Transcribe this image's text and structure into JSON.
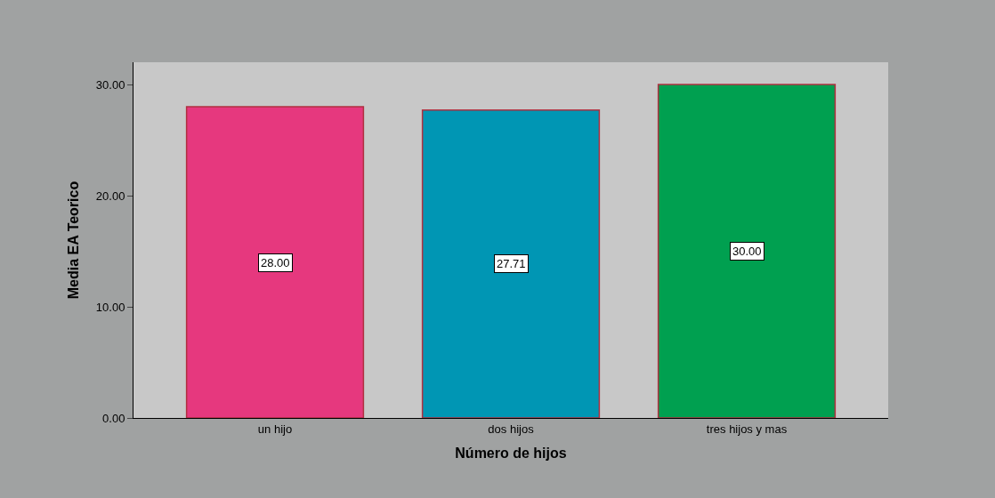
{
  "chart_data": {
    "type": "bar",
    "xlabel": "Número de hijos",
    "ylabel": "Media EA Teorico",
    "categories": [
      "un hijo",
      "dos hijos",
      "tres hijos y mas"
    ],
    "values": [
      28.0,
      27.71,
      30.0
    ],
    "colors": [
      "#e6387e",
      "#0096b4",
      "#00a050"
    ],
    "value_labels": [
      "28.00",
      "27.71",
      "30.00"
    ],
    "ylim": [
      0,
      32
    ],
    "yticks": [
      {
        "value": 0,
        "label": "0.00"
      },
      {
        "value": 10,
        "label": "10.00"
      },
      {
        "value": 20,
        "label": "20.00"
      },
      {
        "value": 30,
        "label": "30.00"
      }
    ],
    "grid": false,
    "legend": false
  }
}
